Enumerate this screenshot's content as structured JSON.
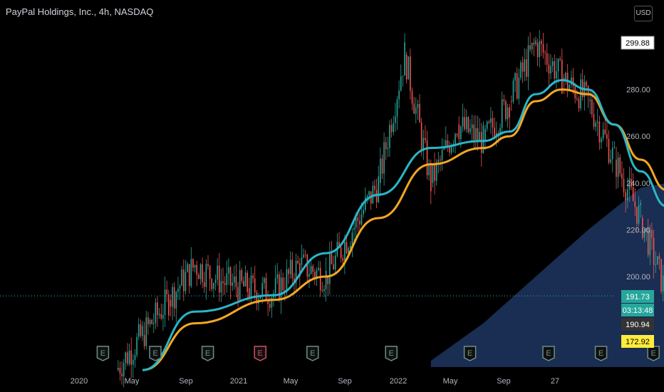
{
  "header": {
    "symbol_title": "PayPal Holdings, Inc., 4h, NASDAQ",
    "currency_button": "USD"
  },
  "colors": {
    "background": "#000000",
    "candle_up": "#26a69a",
    "candle_down": "#ef5350",
    "ma_fast": "#29b6c8",
    "ma_slow": "#f5a623",
    "volume_profile_area": "#1a2d52",
    "target_zone": "#b3b3b3",
    "stop_zone": "#c5b230",
    "earnings_up": "#6b8f85",
    "earnings_down": "#d05060",
    "price_label_current": "#26a69a",
    "price_label_grey": "#333333",
    "price_label_yellow": "#ffeb3b"
  },
  "chart_data": {
    "type": "candlestick",
    "title": "PayPal Holdings, Inc., 4h, NASDAQ",
    "ylim": [
      164,
      314
    ],
    "y_ticks": [
      "280.00",
      "260.00",
      "240.00",
      "220.00",
      "200.00"
    ],
    "x_ticks": [
      "2020",
      "May",
      "Sep",
      "2021",
      "May",
      "Sep",
      "2022",
      "May",
      "Sep",
      "27"
    ],
    "price_path": [
      [
        "2020-03",
        160
      ],
      [
        "2020-04",
        175
      ],
      [
        "2020-05",
        190
      ],
      [
        "2020-06",
        205
      ],
      [
        "2020-07",
        198
      ],
      [
        "2020-08",
        195
      ],
      [
        "2020-09",
        193
      ],
      [
        "2020-10",
        205
      ],
      [
        "2020-11",
        200
      ],
      [
        "2020-12",
        220
      ],
      [
        "2021-01",
        240
      ],
      [
        "2021-02",
        295
      ],
      [
        "2021-03",
        240
      ],
      [
        "2021-04",
        265
      ],
      [
        "2021-05",
        258
      ],
      [
        "2021-06",
        275
      ],
      [
        "2021-07",
        300
      ],
      [
        "2021-08",
        285
      ],
      [
        "2021-09",
        275
      ],
      [
        "2021-10",
        250
      ],
      [
        "2021-11",
        225
      ],
      [
        "2021-12",
        192
      ],
      [
        "2021-12-end",
        191.73
      ]
    ],
    "ma_fast_path": [
      [
        "2020-04",
        160
      ],
      [
        "2020-06",
        185
      ],
      [
        "2020-09",
        192
      ],
      [
        "2020-11",
        210
      ],
      [
        "2021-01",
        235
      ],
      [
        "2021-03",
        255
      ],
      [
        "2021-05",
        258
      ],
      [
        "2021-06",
        262
      ],
      [
        "2021-07",
        278
      ],
      [
        "2021-08",
        284
      ],
      [
        "2021-09",
        280
      ],
      [
        "2021-10",
        265
      ],
      [
        "2021-11",
        245
      ],
      [
        "2021-12",
        230
      ]
    ],
    "ma_slow_path": [
      [
        "2020-04",
        160
      ],
      [
        "2020-06",
        180
      ],
      [
        "2020-09",
        190
      ],
      [
        "2020-11",
        200
      ],
      [
        "2021-01",
        225
      ],
      [
        "2021-03",
        248
      ],
      [
        "2021-05",
        255
      ],
      [
        "2021-06",
        260
      ],
      [
        "2021-07",
        275
      ],
      [
        "2021-08",
        280
      ],
      [
        "2021-09",
        278
      ],
      [
        "2021-10",
        265
      ],
      [
        "2021-11",
        250
      ],
      [
        "2021-12",
        237
      ]
    ],
    "volume_profile_curve": [
      [
        "2021-03",
        164
      ],
      [
        "2021-05",
        180
      ],
      [
        "2021-07",
        200
      ],
      [
        "2021-09",
        220
      ],
      [
        "2021-11",
        238
      ],
      [
        "2021-12",
        240
      ]
    ],
    "target_zone": {
      "from": "2022-01",
      "to": "2022-12",
      "low": 191.73,
      "high": 299.88
    },
    "stop_zone": {
      "from": "2022-01",
      "to": "2022-12",
      "low": 172.92,
      "high": 190.94
    },
    "current_price": 191.73,
    "countdown": "03:13:48",
    "price_labels": [
      {
        "value": "299.88",
        "style": "white"
      },
      {
        "value": "191.73",
        "style": "current"
      },
      {
        "value": "03:13:48",
        "style": "current"
      },
      {
        "value": "190.94",
        "style": "grey"
      },
      {
        "value": "172.92",
        "style": "yellow"
      }
    ],
    "earnings_markers": [
      {
        "label": "E",
        "type": "up",
        "date": "2020-02"
      },
      {
        "label": "E",
        "type": "up",
        "date": "2020-04"
      },
      {
        "label": "E",
        "type": "up",
        "date": "2020-06"
      },
      {
        "label": "E",
        "type": "down",
        "date": "2020-08"
      },
      {
        "label": "E",
        "type": "up",
        "date": "2020-10"
      },
      {
        "label": "E",
        "type": "up",
        "date": "2021-01"
      },
      {
        "label": "E",
        "type": "up",
        "date": "2021-04"
      },
      {
        "label": "E",
        "type": "up",
        "date": "2021-07"
      },
      {
        "label": "E",
        "type": "up",
        "date": "2021-09"
      },
      {
        "label": "E",
        "type": "up",
        "date": "2021-11"
      }
    ]
  }
}
